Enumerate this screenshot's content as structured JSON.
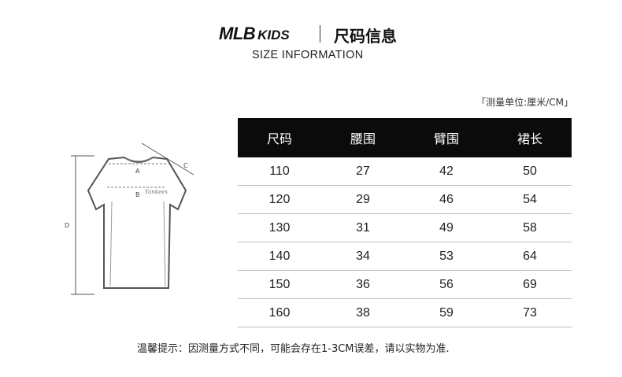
{
  "header": {
    "brand_main": "MLB",
    "brand_sub": "KIDS",
    "title_cn": "尺码信息",
    "subtitle": "SIZE INFORMATION"
  },
  "unit_label": "「测量单位:厘米/CM」",
  "diagram": {
    "labels": [
      "A",
      "B",
      "C",
      "D"
    ],
    "print_text": "Yankees"
  },
  "table": {
    "headers": [
      "尺码",
      "腰围",
      "臂围",
      "裙长"
    ],
    "rows": [
      [
        "110",
        "27",
        "42",
        "50"
      ],
      [
        "120",
        "29",
        "46",
        "54"
      ],
      [
        "130",
        "31",
        "49",
        "58"
      ],
      [
        "140",
        "34",
        "53",
        "64"
      ],
      [
        "150",
        "36",
        "56",
        "69"
      ],
      [
        "160",
        "38",
        "59",
        "73"
      ]
    ]
  },
  "footer_note": "温馨提示：因测量方式不同，可能会存在1-3CM误差，请以实物为准."
}
